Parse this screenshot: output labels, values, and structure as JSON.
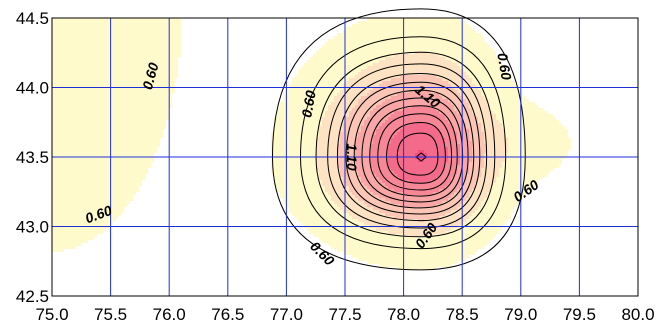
{
  "chart_data": {
    "type": "heatmap",
    "subtype": "filled-contour",
    "x_ticks": [
      "75.0",
      "75.5",
      "76.0",
      "76.5",
      "77.0",
      "77.5",
      "78.0",
      "78.5",
      "79.0",
      "79.5",
      "80.0"
    ],
    "y_ticks": [
      "42.5",
      "43.0",
      "43.5",
      "44.0",
      "44.5"
    ],
    "xlim": [
      75.0,
      80.0
    ],
    "ylim": [
      42.5,
      44.5
    ],
    "grid": true,
    "grid_color": "#1f2fd8",
    "contour_interval": 0.1,
    "levels": [
      0.6,
      0.7,
      0.8,
      0.9,
      1.0,
      1.1,
      1.2,
      1.3,
      1.4,
      1.5,
      1.6,
      1.7,
      1.8
    ],
    "peak": {
      "x": 78.15,
      "y": 43.5
    },
    "fill_colors": [
      "#fffacc",
      "#fde3c4",
      "#fbc6b6",
      "#f9a6a6",
      "#f68796",
      "#f36a8a",
      "#ef4f7f"
    ],
    "contour_labels": [
      {
        "text": "0.60",
        "x": 75.85,
        "y": 44.08,
        "angle": -75
      },
      {
        "text": "0.60",
        "x": 75.4,
        "y": 43.08,
        "angle": -20
      },
      {
        "text": "0.60",
        "x": 77.2,
        "y": 43.88,
        "angle": -80
      },
      {
        "text": "0.60",
        "x": 78.85,
        "y": 44.15,
        "angle": 80
      },
      {
        "text": "0.60",
        "x": 79.05,
        "y": 43.25,
        "angle": -35
      },
      {
        "text": "0.60",
        "x": 78.2,
        "y": 42.93,
        "angle": -55
      },
      {
        "text": "0.60",
        "x": 77.3,
        "y": 42.8,
        "angle": 45
      },
      {
        "text": "1.10",
        "x": 78.2,
        "y": 43.93,
        "angle": 40
      },
      {
        "text": "1.10",
        "x": 77.55,
        "y": 43.5,
        "angle": 90
      }
    ]
  }
}
